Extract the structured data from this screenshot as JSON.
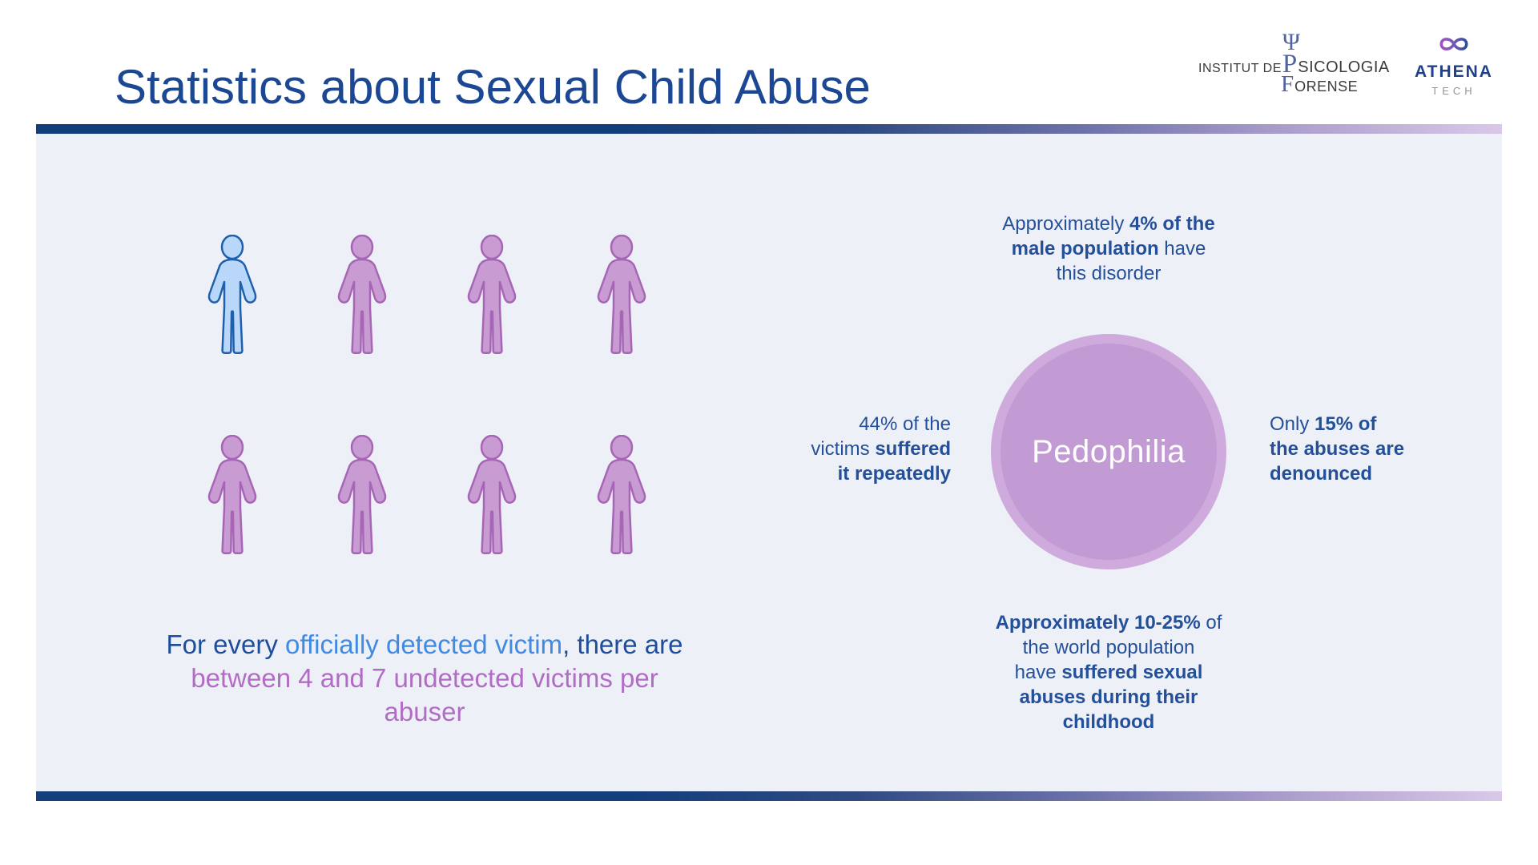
{
  "slide": {
    "title": "Statistics about Sexual Child Abuse"
  },
  "logos": {
    "ipf": {
      "psi": "Ψ",
      "prefix": "INSTITUT DE ",
      "p_initial": "P",
      "p_rest": "SICOLOGIA",
      "f_initial": "F",
      "f_rest": "ORENSE"
    },
    "athena": {
      "name": "ATHENA",
      "sub": "TECH"
    }
  },
  "pictogram": {
    "rows": 2,
    "icons_per_row": 4,
    "total_icons": 8,
    "highlighted_index": 0,
    "highlight_fill": "#b9d7f8",
    "highlight_stroke": "#1e60ad",
    "default_fill": "#c89bd3",
    "default_stroke": "#a765b5",
    "caption_lines": [
      [
        {
          "t": "For every ",
          "c": "navy"
        },
        {
          "t": "officially detected victim",
          "c": "blue"
        },
        {
          "t": ", there are",
          "c": "navy"
        }
      ],
      [
        {
          "t": "between 4 and 7 undetected victims per",
          "c": "purple"
        }
      ],
      [
        {
          "t": "abuser",
          "c": "purple"
        }
      ]
    ]
  },
  "bubble": {
    "label": "Pedophilia",
    "outer_color": "#cfabdd",
    "inner_color": "#c39bd4"
  },
  "stats": {
    "top": [
      [
        {
          "t": "Approximately "
        },
        {
          "t": "4% of the",
          "b": true
        }
      ],
      [
        {
          "t": "male population",
          "b": true
        },
        {
          "t": " have"
        }
      ],
      [
        {
          "t": "this disorder"
        }
      ]
    ],
    "left": [
      [
        {
          "t": "44% of the"
        }
      ],
      [
        {
          "t": "victims "
        },
        {
          "t": "suffered",
          "b": true
        }
      ],
      [
        {
          "t": "it repeatedly",
          "b": true
        }
      ]
    ],
    "right": [
      [
        {
          "t": "Only "
        },
        {
          "t": "15% of",
          "b": true
        }
      ],
      [
        {
          "t": "the abuses are",
          "b": true
        }
      ],
      [
        {
          "t": "denounced",
          "b": true
        }
      ]
    ],
    "bottom": [
      [
        {
          "t": "Approximately 10-25%",
          "b": true
        },
        {
          "t": " of"
        }
      ],
      [
        {
          "t": "the world population"
        }
      ],
      [
        {
          "t": "have "
        },
        {
          "t": "suffered sexual",
          "b": true
        }
      ],
      [
        {
          "t": "abuses during their",
          "b": true
        }
      ],
      [
        {
          "t": "childhood",
          "b": true
        }
      ]
    ]
  },
  "colors": {
    "title_blue": "#1b4793",
    "stat_blue": "#24509a",
    "accent_blue": "#418ae2",
    "accent_purple": "#b16dc4",
    "panel_bg": "#eef0f8",
    "bar_dark": "#123e7c",
    "bar_light": "#d9c8e8",
    "bubble_text": "#ffffff"
  }
}
